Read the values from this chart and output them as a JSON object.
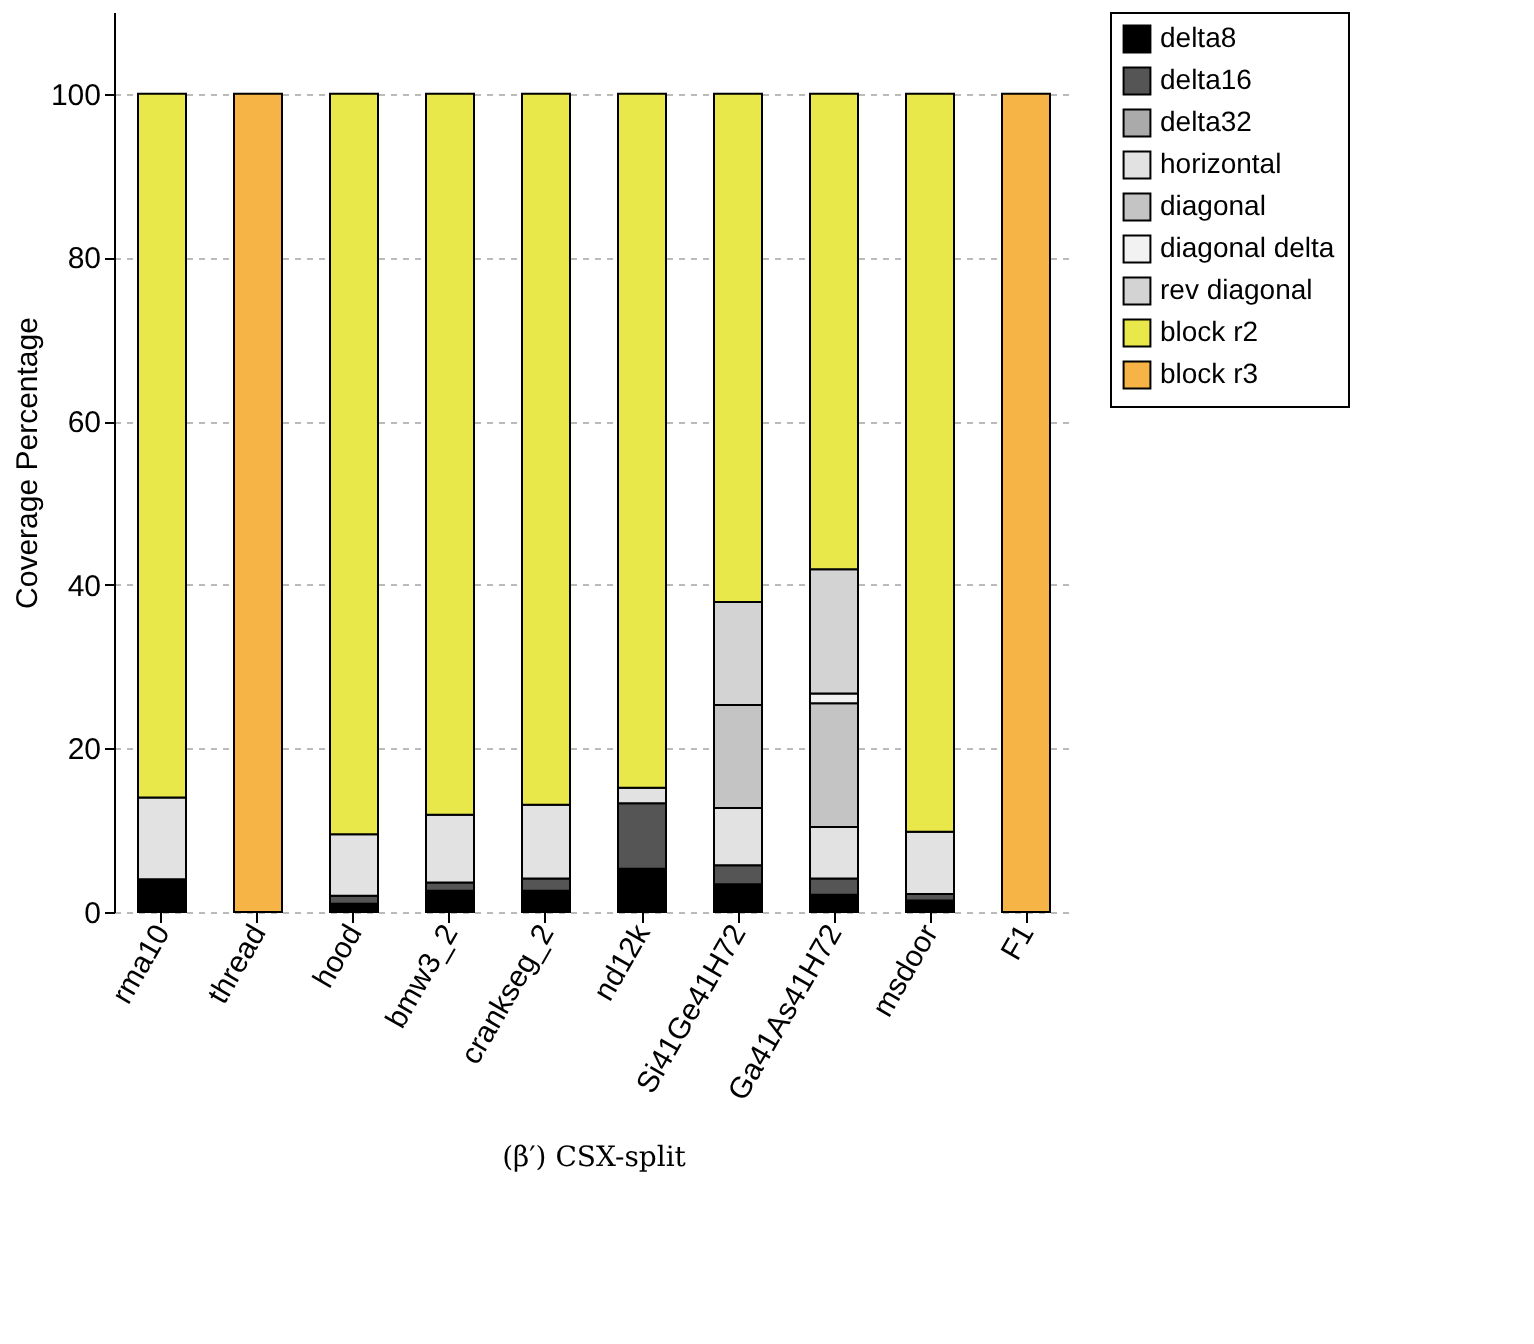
{
  "chart_data": {
    "type": "bar",
    "stacked": true,
    "title": "(β′) CSX-split",
    "ylabel": "Coverage Percentage",
    "categories": [
      "rma10",
      "thread",
      "hood",
      "bmw3_2",
      "crankseg_2",
      "nd12k",
      "Si41Ge41H72",
      "Ga41As41H72",
      "msdoor",
      "F1"
    ],
    "series": [
      {
        "name": "delta8",
        "color": "#000000",
        "values": [
          4,
          0,
          1,
          2.6,
          2.6,
          5.3,
          3.4,
          2.1,
          1.4,
          0
        ]
      },
      {
        "name": "delta16",
        "color": "#555555",
        "values": [
          0,
          0,
          1,
          1,
          1.5,
          8,
          2.3,
          2,
          0.8,
          0
        ]
      },
      {
        "name": "delta32",
        "color": "#aaaaaa",
        "values": [
          0,
          0,
          0,
          0,
          0,
          0,
          0,
          0,
          0,
          0
        ]
      },
      {
        "name": "horizontal",
        "color": "#e2e2e2",
        "values": [
          10,
          0,
          7.5,
          8.3,
          9,
          1.9,
          7,
          6.3,
          7.6,
          0
        ]
      },
      {
        "name": "diagonal",
        "color": "#c4c4c4",
        "values": [
          0,
          0,
          0,
          0,
          0,
          0,
          12.6,
          15.1,
          0,
          0
        ]
      },
      {
        "name": "diagonal delta",
        "color": "#f2f2f2",
        "values": [
          0,
          0,
          0,
          0,
          0,
          0,
          0,
          1.2,
          0,
          0
        ]
      },
      {
        "name": "rev diagonal",
        "color": "#d3d3d3",
        "values": [
          0,
          0,
          0,
          0,
          0,
          0,
          12.6,
          15.2,
          0,
          0
        ]
      },
      {
        "name": "block r2",
        "color": "#e8e84a",
        "values": [
          86,
          0,
          90.5,
          88.1,
          86.9,
          84.8,
          62.1,
          58.1,
          90.2,
          0
        ]
      },
      {
        "name": "block r3",
        "color": "#f5b445",
        "values": [
          0,
          100,
          0,
          0,
          0,
          0,
          0,
          0,
          0,
          100
        ]
      }
    ],
    "ylim": [
      0,
      110
    ],
    "yticks": [
      0,
      20,
      40,
      60,
      80,
      100
    ],
    "grid": "y",
    "legend": "right"
  }
}
